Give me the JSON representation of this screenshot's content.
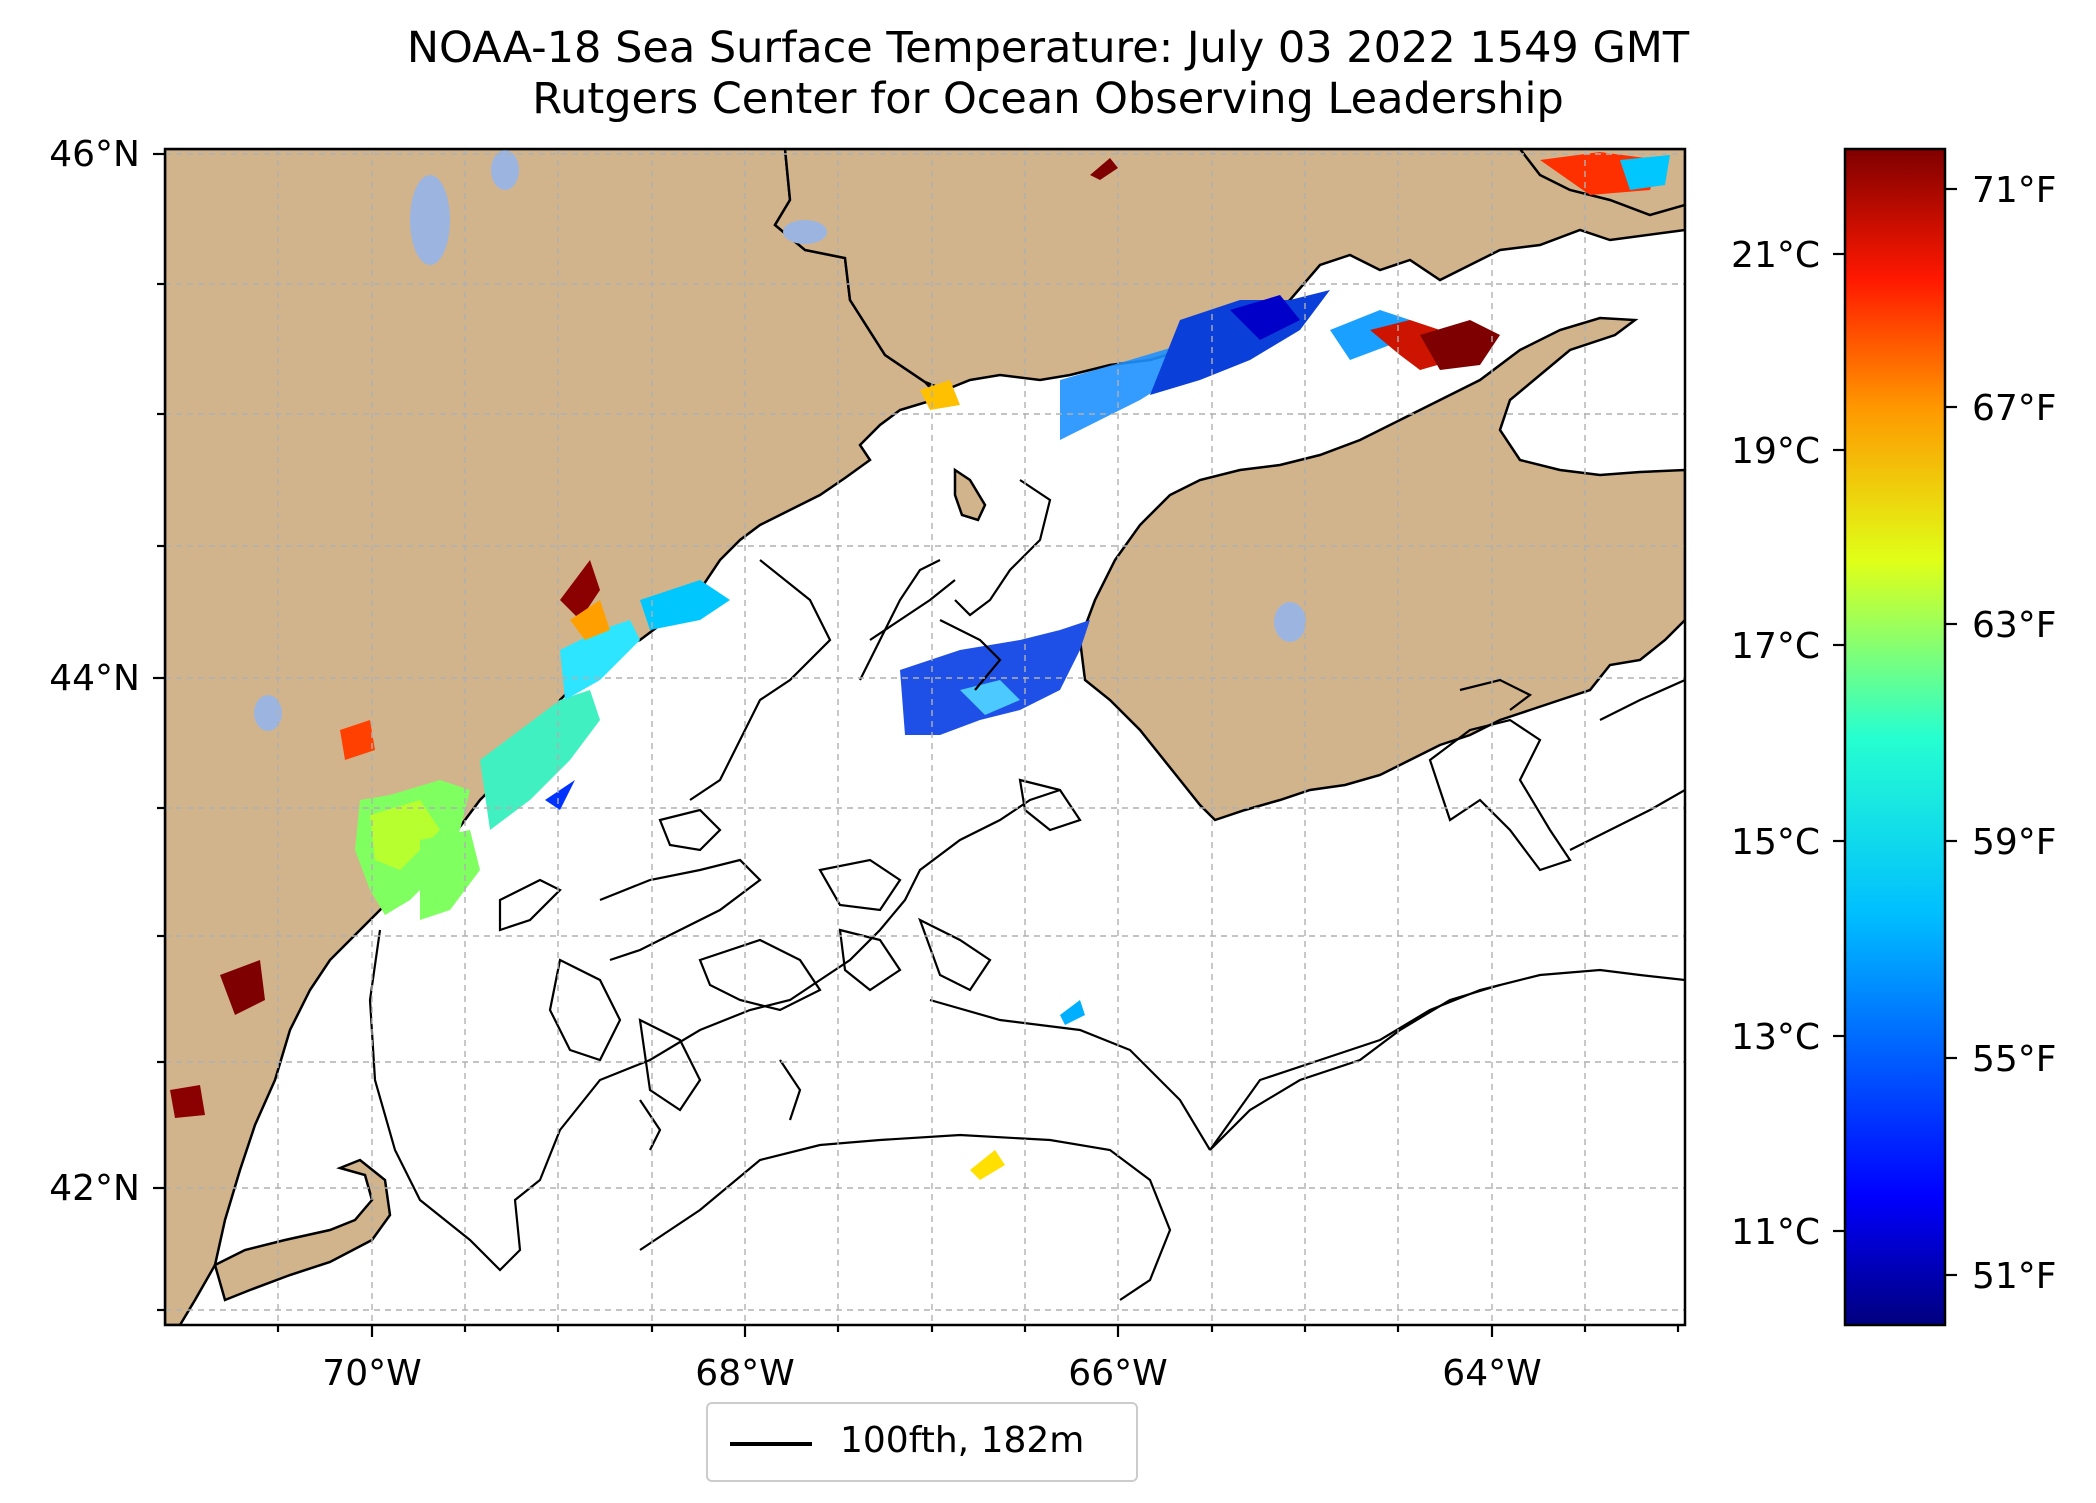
{
  "title": "NOAA-18 Sea Surface Temperature: July 03 2022 1549 GMT",
  "subtitle": "Rutgers Center for Ocean Observing Leadership",
  "map": {
    "lat_ticks": [
      "46°N",
      "44°N",
      "42°N"
    ],
    "lon_ticks": [
      "70°W",
      "68°W",
      "66°W",
      "64°W"
    ],
    "gridlines": true
  },
  "legend": {
    "label": "100fth, 182m",
    "placement": "bottom-center"
  },
  "colorbar": {
    "colormap": "jet",
    "celsius_ticks": [
      "21°C",
      "19°C",
      "17°C",
      "15°C",
      "13°C",
      "11°C"
    ],
    "fahrenheit_ticks": [
      "71°F",
      "67°F",
      "63°F",
      "59°F",
      "55°F",
      "51°F"
    ]
  },
  "colors": {
    "land": "#d2b48c",
    "lakes": "#9cb5e0",
    "ocean": "#ffffff",
    "coastline": "#000000",
    "grid": "#b0b0b0"
  }
}
